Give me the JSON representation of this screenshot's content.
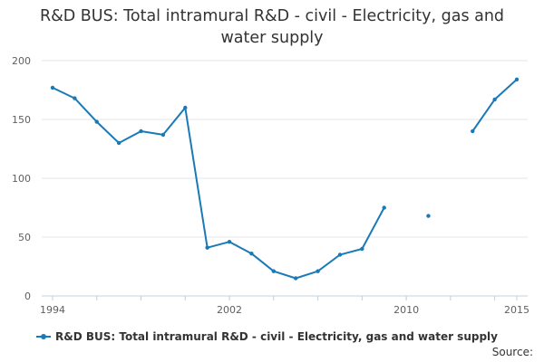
{
  "chart_data": {
    "type": "line",
    "title": "R&D BUS: Total intramural R&D - civil - Electricity, gas and water supply",
    "xlabel": "",
    "ylabel": "",
    "xlim": [
      1994,
      2015
    ],
    "ylim": [
      0,
      200
    ],
    "x_ticks": [
      1994,
      2002,
      2010,
      2015
    ],
    "y_ticks": [
      0,
      50,
      100,
      150,
      200
    ],
    "grid": true,
    "legend_position": "bottom",
    "series": [
      {
        "name": "R&D BUS: Total intramural R&D - civil - Electricity, gas and water supply",
        "color": "#1a7ab8",
        "points": [
          {
            "x": 1994,
            "y": 177
          },
          {
            "x": 1995,
            "y": 168
          },
          {
            "x": 1996,
            "y": 148
          },
          {
            "x": 1997,
            "y": 130
          },
          {
            "x": 1998,
            "y": 140
          },
          {
            "x": 1999,
            "y": 137
          },
          {
            "x": 2000,
            "y": 160
          },
          {
            "x": 2001,
            "y": 41
          },
          {
            "x": 2002,
            "y": 46
          },
          {
            "x": 2003,
            "y": 36
          },
          {
            "x": 2004,
            "y": 21
          },
          {
            "x": 2005,
            "y": 15
          },
          {
            "x": 2006,
            "y": 21
          },
          {
            "x": 2007,
            "y": 35
          },
          {
            "x": 2008,
            "y": 40
          },
          {
            "x": 2009,
            "y": 75
          },
          {
            "x": 2010,
            "y": null
          },
          {
            "x": 2011,
            "y": 68
          },
          {
            "x": 2012,
            "y": null
          },
          {
            "x": 2013,
            "y": 140
          },
          {
            "x": 2014,
            "y": 167
          },
          {
            "x": 2015,
            "y": 184
          }
        ]
      }
    ]
  },
  "footer": {
    "source_label": "Source:"
  }
}
